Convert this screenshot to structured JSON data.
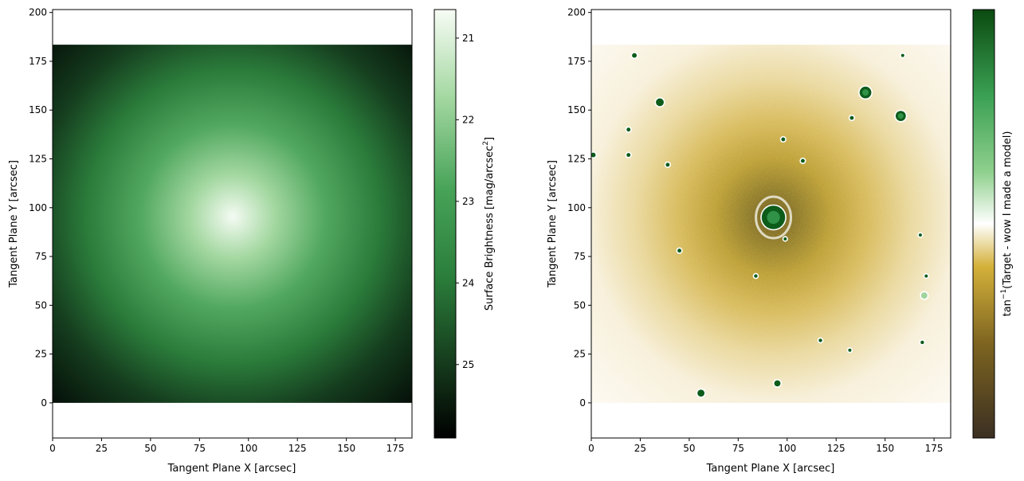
{
  "chart_data": [
    {
      "type": "heatmap",
      "title": "",
      "xlabel": "Tangent Plane X [arcsec]",
      "ylabel": "Tangent Plane Y [arcsec]",
      "xlim": [
        0,
        183.5
      ],
      "ylim": [
        -18,
        201.5
      ],
      "extent": {
        "x": [
          0,
          183.5
        ],
        "y": [
          0,
          183.5
        ]
      },
      "x_ticks": [
        0,
        25,
        50,
        75,
        100,
        125,
        150,
        175
      ],
      "y_ticks": [
        0,
        25,
        50,
        75,
        100,
        125,
        150,
        175,
        200
      ],
      "image_description_values": {
        "center": [
          92,
          95
        ],
        "peak_surface_brightness": 20.7,
        "edge_surface_brightness": 25.9
      },
      "colorbar": {
        "label": "Surface Brightness [mag/arcsec$^2$]",
        "label_main": "Surface Brightness [mag/arcsec",
        "label_sup": "2",
        "label_end": "]",
        "range": [
          20.65,
          25.9
        ],
        "ticks": [
          21,
          22,
          23,
          24,
          25
        ],
        "inverted": true
      },
      "colors": {
        "bright": "#f3fbf2",
        "mid": "#3e9a50",
        "dark": "#06130a"
      }
    },
    {
      "type": "heatmap",
      "title": "",
      "xlabel": "Tangent Plane X [arcsec]",
      "ylabel": "Tangent Plane Y [arcsec]",
      "xlim": [
        0,
        183.5
      ],
      "ylim": [
        -18,
        201.5
      ],
      "extent": {
        "x": [
          0,
          183.5
        ],
        "y": [
          0,
          183.5
        ]
      },
      "x_ticks": [
        0,
        25,
        50,
        75,
        100,
        125,
        150,
        175
      ],
      "y_ticks": [
        0,
        25,
        50,
        75,
        100,
        125,
        150,
        175,
        200
      ],
      "residual_sources": [
        {
          "x": 93,
          "y": 95,
          "r": 6,
          "sign": 1
        },
        {
          "x": 140,
          "y": 159,
          "r": 3,
          "sign": 1
        },
        {
          "x": 158,
          "y": 147,
          "r": 2.6,
          "sign": 1
        },
        {
          "x": 35,
          "y": 154,
          "r": 2,
          "sign": 1
        },
        {
          "x": 22,
          "y": 178,
          "r": 1.2,
          "sign": 1
        },
        {
          "x": 56,
          "y": 5,
          "r": 1.8,
          "sign": 1
        },
        {
          "x": 95,
          "y": 10,
          "r": 1.6,
          "sign": 1
        },
        {
          "x": 98,
          "y": 135,
          "r": 1,
          "sign": 1
        },
        {
          "x": 108,
          "y": 124,
          "r": 1,
          "sign": 1
        },
        {
          "x": 133,
          "y": 146,
          "r": 1,
          "sign": 1
        },
        {
          "x": 1,
          "y": 127,
          "r": 1.2,
          "sign": 1
        },
        {
          "x": 19,
          "y": 140,
          "r": 1,
          "sign": 1
        },
        {
          "x": 19,
          "y": 127,
          "r": 1,
          "sign": 1
        },
        {
          "x": 39,
          "y": 122,
          "r": 1,
          "sign": 1
        },
        {
          "x": 45,
          "y": 78,
          "r": 1,
          "sign": 1
        },
        {
          "x": 84,
          "y": 65,
          "r": 0.9,
          "sign": 1
        },
        {
          "x": 117,
          "y": 32,
          "r": 0.9,
          "sign": 1
        },
        {
          "x": 159,
          "y": 178,
          "r": 0.8,
          "sign": 1
        },
        {
          "x": 168,
          "y": 86,
          "r": 0.8,
          "sign": 1
        },
        {
          "x": 171,
          "y": 65,
          "r": 0.7,
          "sign": 1
        },
        {
          "x": 170,
          "y": 55,
          "r": 1.6,
          "sign": -1
        },
        {
          "x": 169,
          "y": 31,
          "r": 0.9,
          "sign": 1
        },
        {
          "x": 132,
          "y": 27,
          "r": 0.8,
          "sign": 1
        },
        {
          "x": 99,
          "y": 84,
          "r": 0.8,
          "sign": 1
        }
      ],
      "colorbar": {
        "label": "tan$^{-1}$(Target - wow I made a model)",
        "label_pre": "tan",
        "label_sup": "−1",
        "label_post": "(Target - wow I made a model)",
        "ticks": [],
        "colormap": "diverging brown-gold-white-green"
      },
      "colors": {
        "dark_brown": "#3b2f22",
        "gold": "#d4b13a",
        "white": "#ffffff",
        "green": "#3aa053",
        "dark_green": "#0b4a10"
      }
    }
  ]
}
